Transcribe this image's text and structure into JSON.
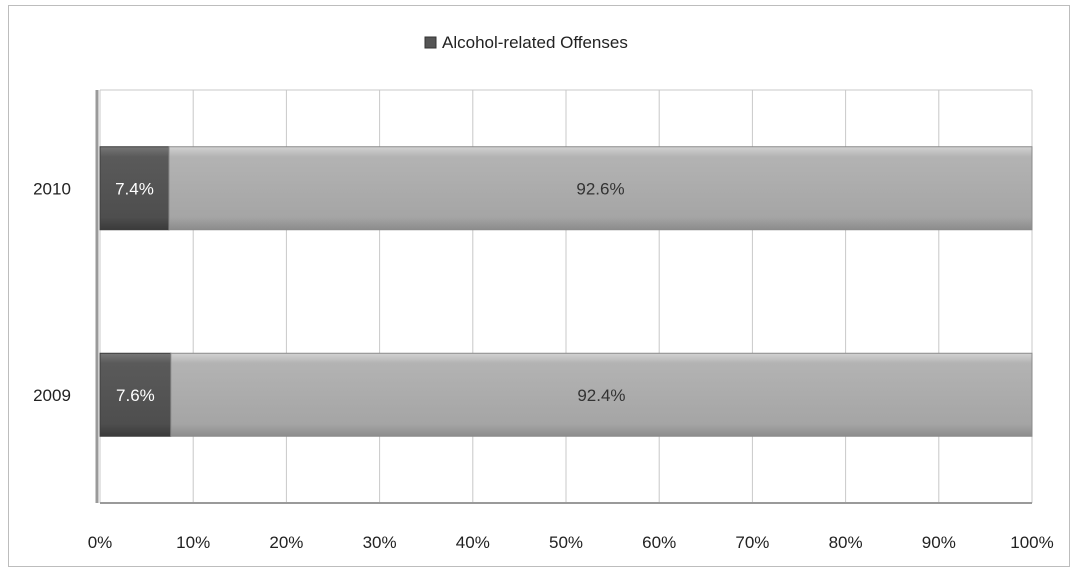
{
  "chart_data": {
    "type": "bar",
    "orientation": "horizontal",
    "stacked": "percent",
    "categories": [
      "2010",
      "2009"
    ],
    "series": [
      {
        "name": "Alcohol-related Offenses",
        "values": [
          7.4,
          7.6
        ],
        "labels": [
          "7.4%",
          "7.6%"
        ],
        "color": "#555555"
      },
      {
        "values": [
          92.6,
          92.4
        ],
        "labels": [
          "92.6%",
          "92.4%"
        ],
        "color": "#a6a6a6"
      }
    ],
    "xlim": [
      0,
      100
    ],
    "xticks": [
      "0%",
      "10%",
      "20%",
      "30%",
      "40%",
      "50%",
      "60%",
      "70%",
      "80%",
      "90%",
      "100%"
    ],
    "grid": true,
    "legend": "top-center",
    "legend_entries": [
      "Alcohol-related Offenses"
    ]
  }
}
